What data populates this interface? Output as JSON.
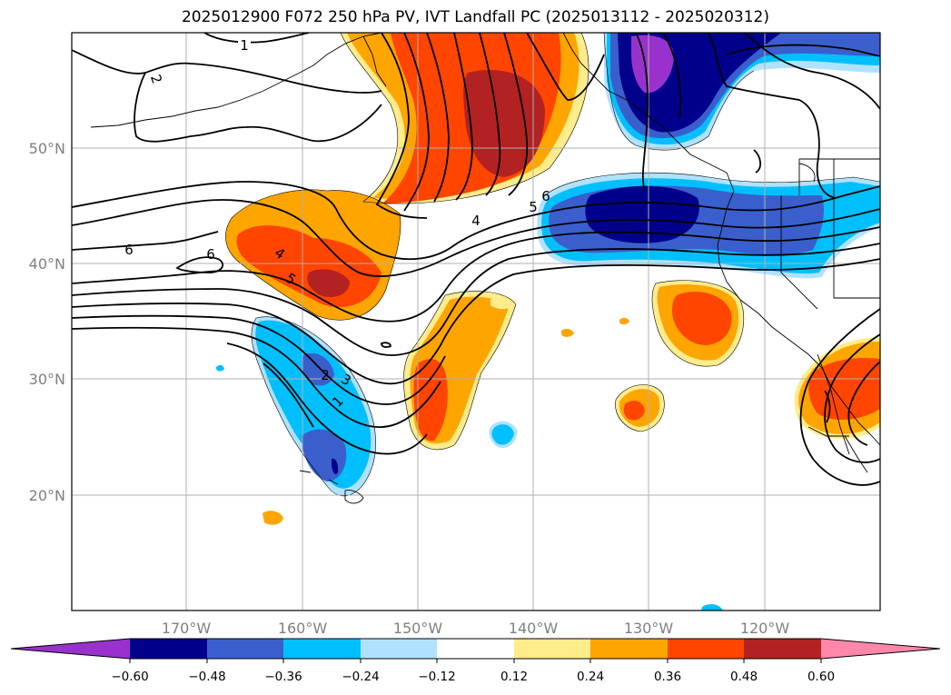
{
  "title": "2025012900 F072 250 hPa PV, IVT Landfall PC (2025013112 - 2025020312)",
  "map": {
    "lat_labels": [
      "50°N",
      "40°N",
      "30°N",
      "20°N"
    ],
    "lon_labels": [
      "170°W",
      "160°W",
      "150°W",
      "140°W",
      "130°W",
      "120°W"
    ],
    "contour_labels": [
      "1",
      "2",
      "6",
      "6",
      "4",
      "5",
      "4",
      "5",
      "6",
      "2",
      "3",
      "1"
    ]
  },
  "colorbar": {
    "tick_labels": [
      "−0.60",
      "−0.48",
      "−0.36",
      "−0.24",
      "−0.12",
      "0.12",
      "0.24",
      "0.36",
      "0.48",
      "0.60"
    ],
    "colors": [
      "#9932cc",
      "#00008b",
      "#3a5fcd",
      "#00bfff",
      "#b0e2ff",
      "#ffffff",
      "#ffec8b",
      "#ffa500",
      "#ff4500",
      "#b22222",
      "#ff88aa"
    ]
  }
}
